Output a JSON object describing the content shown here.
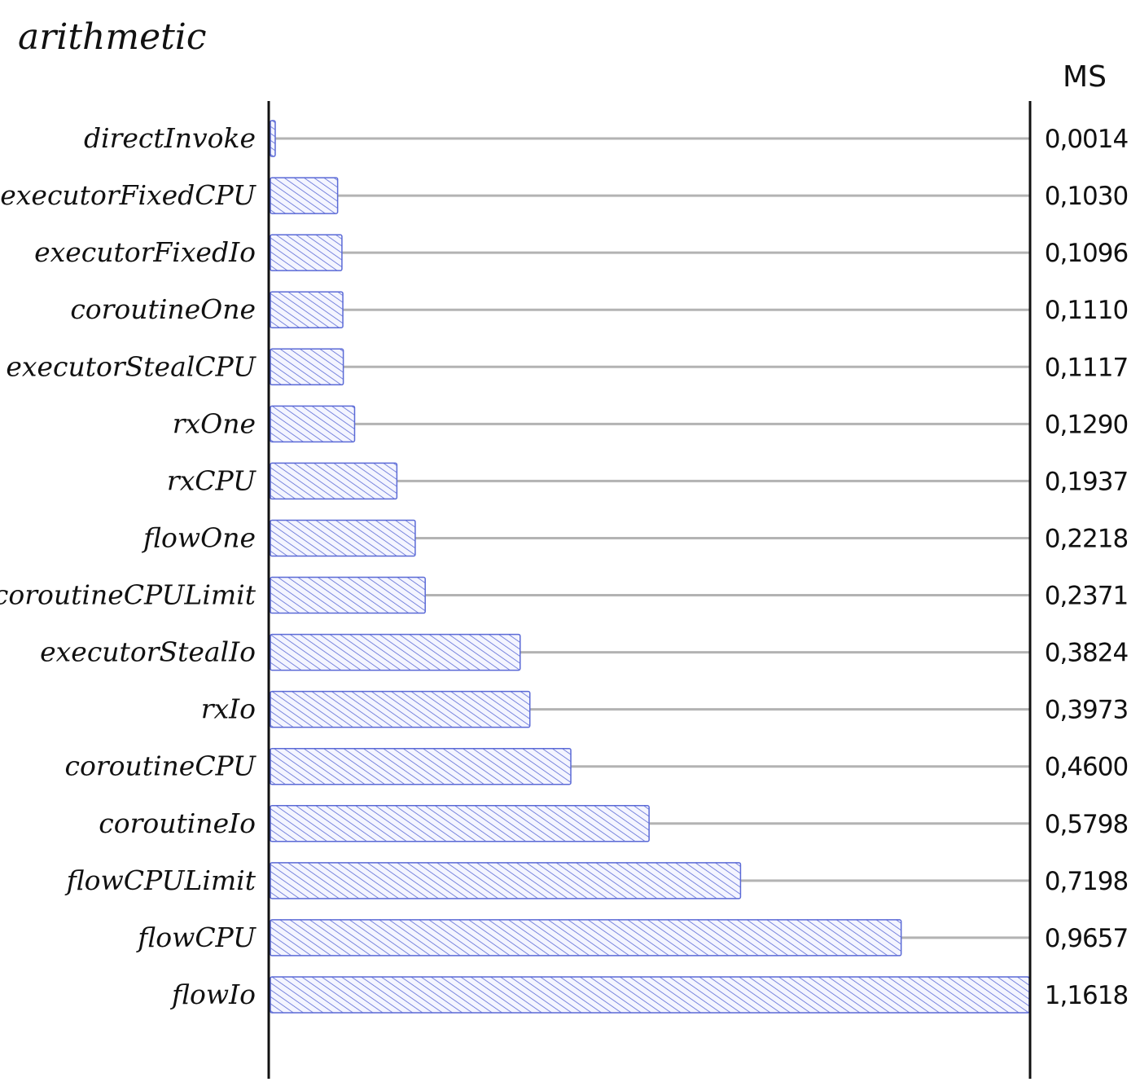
{
  "chart_data": {
    "type": "bar",
    "orientation": "horizontal",
    "title": "arithmetic",
    "unit": "MS",
    "categories": [
      "directInvoke",
      "executorFixedCPU",
      "executorFixedIo",
      "coroutineOne",
      "executorStealCPU",
      "rxOne",
      "rxCPU",
      "flowOne",
      "coroutineCPULimit",
      "executorStealIo",
      "rxIo",
      "coroutineCPU",
      "coroutineIo",
      "flowCPULimit",
      "flowCPU",
      "flowIo"
    ],
    "values": [
      0.0014,
      0.103,
      0.1096,
      0.111,
      0.1117,
      0.129,
      0.1937,
      0.2218,
      0.2371,
      0.3824,
      0.3973,
      0.46,
      0.5798,
      0.7198,
      0.9657,
      1.1618
    ],
    "value_labels": [
      "0,0014",
      "0,1030",
      "0,1096",
      "0,1110",
      "0,1117",
      "0,1290",
      "0,1937",
      "0,2218",
      "0,2371",
      "0,3824",
      "0,3973",
      "0,4600",
      "0,5798",
      "0,7198",
      "0,9657",
      "1,1618"
    ],
    "xlim": [
      0,
      1.1618
    ],
    "bar_color": "#5b6ad6",
    "grid": false,
    "legend": "none"
  }
}
